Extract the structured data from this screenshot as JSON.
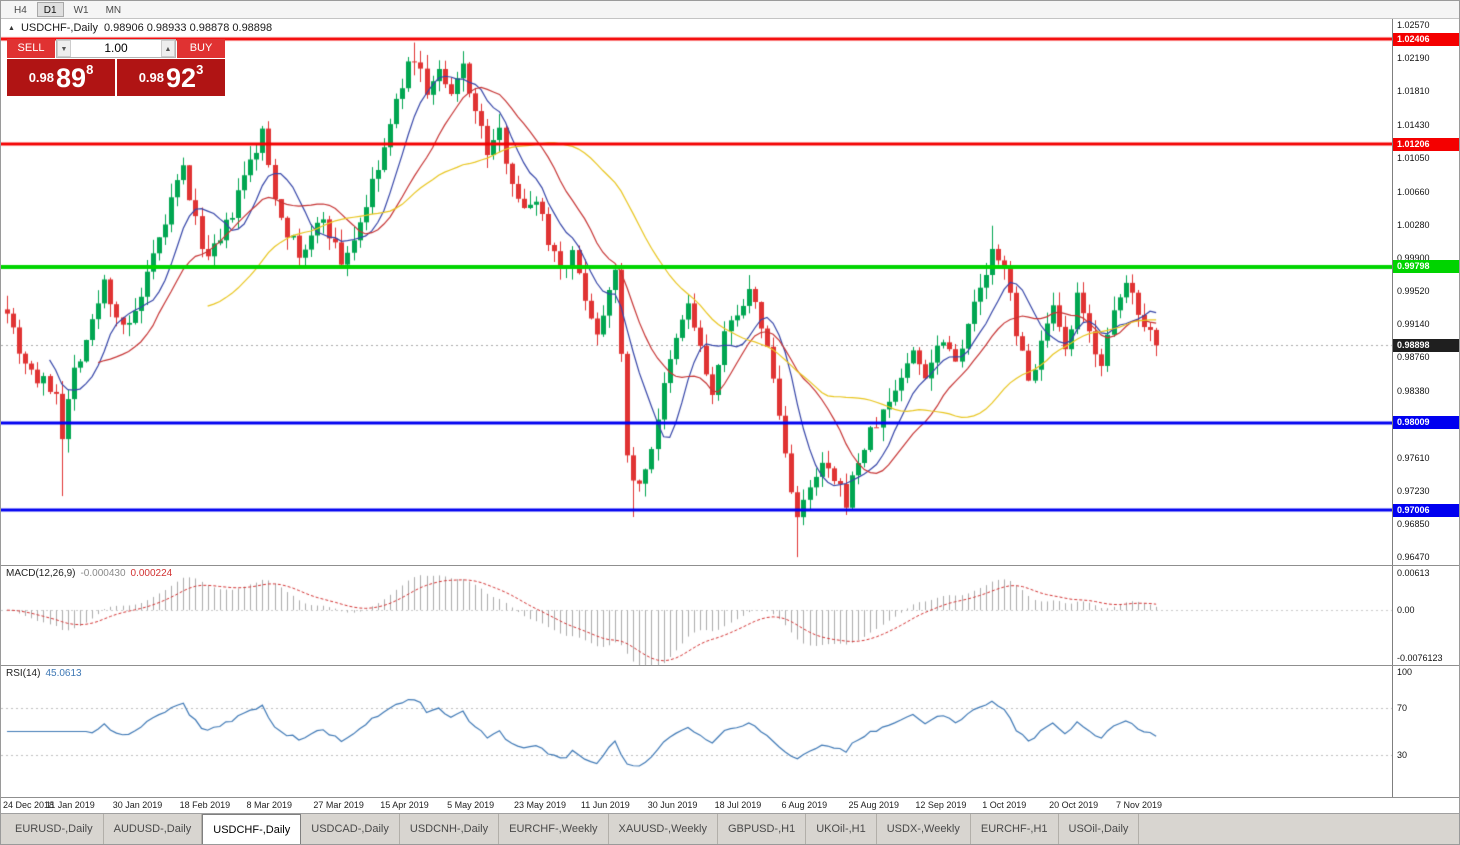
{
  "toolbar": {
    "timeframes": [
      {
        "label": "H4",
        "active": false
      },
      {
        "label": "D1",
        "active": true
      },
      {
        "label": "W1",
        "active": false
      },
      {
        "label": "MN",
        "active": false
      }
    ]
  },
  "icons": {
    "collapse": "▲",
    "spin_up": "▲",
    "spin_down": "▼"
  },
  "chart_title": {
    "symbol": "USDCHF-,Daily",
    "ohlc": "0.98906 0.98933 0.98878 0.98898"
  },
  "trade_panel": {
    "sell_label": "SELL",
    "buy_label": "BUY",
    "volume": "1.00",
    "sell_price": {
      "base": "0.98",
      "big": "89",
      "sup": "8"
    },
    "buy_price": {
      "base": "0.98",
      "big": "92",
      "sup": "3"
    }
  },
  "colors": {
    "up": "#00a651",
    "down": "#e03333",
    "ma_fast": "#3545a8",
    "ma_mid": "#c63434",
    "ma_slow": "#e8c51e",
    "level_red": "#f40000",
    "level_green": "#00d400",
    "level_blue": "#0000f0",
    "current_badge": "#1f1f1f",
    "current_line": "#a8a8a8",
    "macd_hist": "#ababab",
    "macd_signal": "#d23333",
    "rsi_line": "#3e78b5",
    "rsi_level": "#bdbdbd",
    "btn_red": "#e03232",
    "price_bg": "#b01414"
  },
  "chart_data": {
    "type": "candlestick",
    "symbol": "USDCHF-,Daily",
    "ohlc_display": {
      "open": "0.98906",
      "high": "0.98933",
      "low": "0.98878",
      "close": "0.98898"
    },
    "price_axis": {
      "plot_price_top": 1.0264,
      "plot_price_bottom": 0.9638,
      "ticks": [
        "1.02570",
        "1.02190",
        "1.01810",
        "1.01430",
        "1.01050",
        "1.00660",
        "1.00280",
        "0.99900",
        "0.99520",
        "0.99140",
        "0.98760",
        "0.98380",
        "0.97610",
        "0.97230",
        "0.96850",
        "0.96470"
      ]
    },
    "levels": [
      {
        "price": 1.02406,
        "label": "1.02406",
        "color_key": "level_red",
        "width": 3,
        "type": "resistance"
      },
      {
        "price": 1.01206,
        "label": "1.01206",
        "color_key": "level_red",
        "width": 3,
        "type": "resistance"
      },
      {
        "price": 0.99798,
        "label": "0.99798",
        "color_key": "level_green",
        "width": 4,
        "type": "pivot"
      },
      {
        "price": 0.98009,
        "label": "0.98009",
        "color_key": "level_blue",
        "width": 3,
        "type": "support"
      },
      {
        "price": 0.97006,
        "label": "0.97006",
        "color_key": "level_blue",
        "width": 3,
        "type": "support"
      }
    ],
    "current_price": {
      "value": 0.98898,
      "label": "0.98898"
    },
    "candles": {
      "count": 190,
      "noise_seed": 7,
      "body_noise": 0.0009,
      "wick_noise": 0.0016,
      "anchors": [
        [
          0,
          0.9935
        ],
        [
          2,
          0.9885
        ],
        [
          5,
          0.985
        ],
        [
          8,
          0.9838
        ],
        [
          9,
          0.979
        ],
        [
          11,
          0.9862
        ],
        [
          14,
          0.9915
        ],
        [
          16,
          0.9962
        ],
        [
          18,
          0.9925
        ],
        [
          20,
          0.9908
        ],
        [
          22,
          0.9945
        ],
        [
          25,
          1.0008
        ],
        [
          27,
          1.0055
        ],
        [
          29,
          1.0092
        ],
        [
          31,
          1.003
        ],
        [
          33,
          0.9988
        ],
        [
          35,
          1.0008
        ],
        [
          37,
          1.0042
        ],
        [
          39,
          1.0082
        ],
        [
          42,
          1.0132
        ],
        [
          44,
          1.0062
        ],
        [
          46,
          1.0022
        ],
        [
          48,
          0.9992
        ],
        [
          50,
          1.0012
        ],
        [
          52,
          1.0038
        ],
        [
          54,
          1.0002
        ],
        [
          55,
          0.9985
        ],
        [
          57,
          1.0012
        ],
        [
          59,
          1.0052
        ],
        [
          61,
          1.0092
        ],
        [
          63,
          1.014
        ],
        [
          65,
          1.0192
        ],
        [
          67,
          1.0222
        ],
        [
          69,
          1.0182
        ],
        [
          71,
          1.0202
        ],
        [
          73,
          1.0172
        ],
        [
          75,
          1.0212
        ],
        [
          77,
          1.0158
        ],
        [
          79,
          1.0112
        ],
        [
          81,
          1.0132
        ],
        [
          83,
          1.0082
        ],
        [
          85,
          1.0042
        ],
        [
          87,
          1.0062
        ],
        [
          89,
          1.0012
        ],
        [
          91,
          0.9982
        ],
        [
          93,
          0.9992
        ],
        [
          95,
          0.9948
        ],
        [
          97,
          0.9902
        ],
        [
          99,
          0.9958
        ],
        [
          100,
          0.9985
        ],
        [
          102,
          0.976
        ],
        [
          104,
          0.9725
        ],
        [
          106,
          0.9775
        ],
        [
          108,
          0.984
        ],
        [
          110,
          0.9895
        ],
        [
          112,
          0.9938
        ],
        [
          114,
          0.9885
        ],
        [
          116,
          0.9832
        ],
        [
          118,
          0.9898
        ],
        [
          120,
          0.9932
        ],
        [
          122,
          0.9948
        ],
        [
          124,
          0.9915
        ],
        [
          126,
          0.9852
        ],
        [
          128,
          0.9765
        ],
        [
          130,
          0.9692
        ],
        [
          132,
          0.9722
        ],
        [
          134,
          0.9752
        ],
        [
          136,
          0.9732
        ],
        [
          138,
          0.9712
        ],
        [
          140,
          0.9758
        ],
        [
          142,
          0.9788
        ],
        [
          143,
          0.98
        ],
        [
          145,
          0.9825
        ],
        [
          147,
          0.9855
        ],
        [
          149,
          0.9882
        ],
        [
          151,
          0.9858
        ],
        [
          153,
          0.9888
        ],
        [
          154,
          0.9902
        ],
        [
          156,
          0.9872
        ],
        [
          158,
          0.9918
        ],
        [
          160,
          0.9952
        ],
        [
          162,
          0.9995
        ],
        [
          164,
          0.9972
        ],
        [
          165,
          0.9958
        ],
        [
          166,
          0.9905
        ],
        [
          168,
          0.9848
        ],
        [
          170,
          0.9892
        ],
        [
          172,
          0.9928
        ],
        [
          174,
          0.9878
        ],
        [
          176,
          0.9942
        ],
        [
          178,
          0.9902
        ],
        [
          180,
          0.9872
        ],
        [
          182,
          0.9922
        ],
        [
          184,
          0.9962
        ],
        [
          186,
          0.9932
        ],
        [
          188,
          0.9905
        ],
        [
          189,
          0.989
        ]
      ],
      "spikes": [
        {
          "i": 9,
          "type": "low",
          "price": 0.9717
        },
        {
          "i": 67,
          "type": "high",
          "price": 1.0237
        },
        {
          "i": 103,
          "type": "low",
          "price": 0.9693
        },
        {
          "i": 130,
          "type": "low",
          "price": 0.9647
        },
        {
          "i": 162,
          "type": "high",
          "price": 1.0027
        }
      ]
    },
    "moving_averages": [
      {
        "period": 8,
        "color_key": "ma_fast"
      },
      {
        "period": 16,
        "color_key": "ma_mid"
      },
      {
        "period": 34,
        "color_key": "ma_slow"
      }
    ],
    "macd": {
      "name": "MACD(12,26,9)",
      "value_main": "-0.000430",
      "value_signal": "0.000224",
      "fast": 12,
      "slow": 26,
      "signal": 9,
      "axis_top": "0.00613",
      "axis_zero": "0.00",
      "axis_bottom": "-0.0076123",
      "range_top": 0.00613,
      "range_bottom": -0.0076123
    },
    "rsi": {
      "name": "RSI(14)",
      "value": "45.0613",
      "period": 14,
      "levels": [
        70,
        30
      ],
      "axis_labels": [
        {
          "text": "100",
          "value": 100
        },
        {
          "text": "70",
          "value": 70
        },
        {
          "text": "30",
          "value": 30
        }
      ]
    },
    "date_ticks": [
      "24 Dec 2018",
      "11 Jan 2019",
      "30 Jan 2019",
      "18 Feb 2019",
      "8 Mar 2019",
      "27 Mar 2019",
      "15 Apr 2019",
      "5 May 2019",
      "23 May 2019",
      "11 Jun 2019",
      "30 Jun 2019",
      "18 Jul 2019",
      "6 Aug 2019",
      "25 Aug 2019",
      "12 Sep 2019",
      "1 Oct 2019",
      "20 Oct 2019",
      "7 Nov 2019"
    ],
    "candles_per_tick": 11
  },
  "tabs": {
    "active_index": 2,
    "items": [
      "EURUSD-,Daily",
      "AUDUSD-,Daily",
      "USDCHF-,Daily",
      "USDCAD-,Daily",
      "USDCNH-,Daily",
      "EURCHF-,Weekly",
      "XAUUSD-,Weekly",
      "GBPUSD-,H1",
      "UKOil-,H1",
      "USDX-,Weekly",
      "EURCHF-,H1",
      "USOil-,Daily"
    ]
  }
}
